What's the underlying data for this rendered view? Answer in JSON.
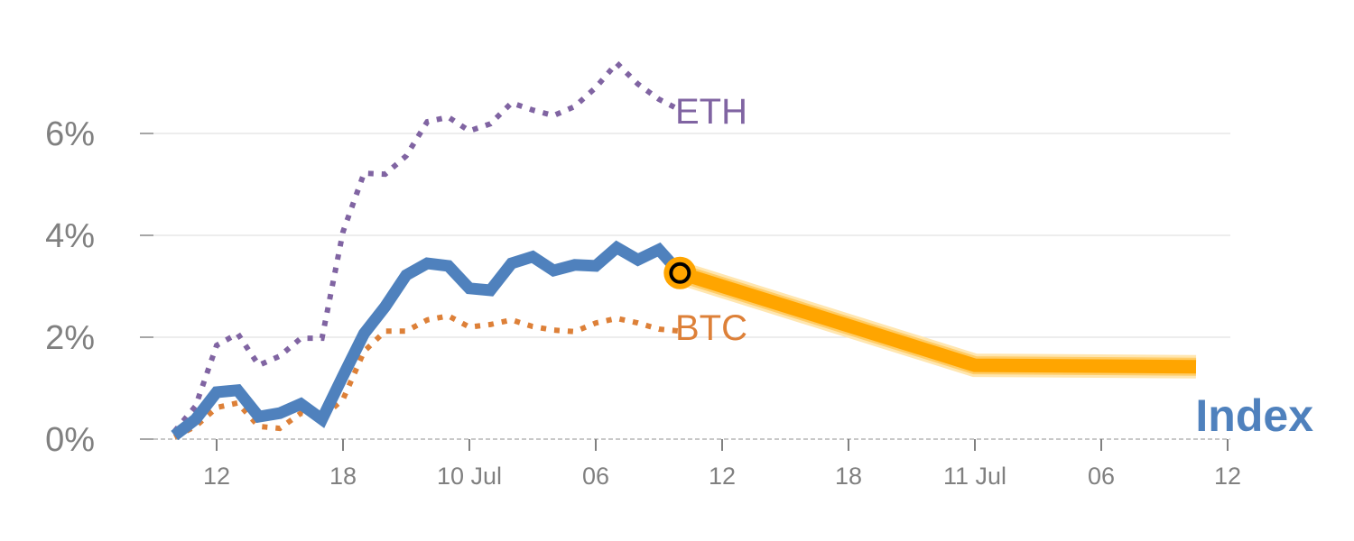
{
  "chart_data": {
    "type": "line",
    "title": "",
    "xlabel": "",
    "ylabel": "",
    "x_unit": "hours since 9 Jul 00:00",
    "xlim": [
      7.7,
      60.8
    ],
    "ylim": [
      0,
      8
    ],
    "y_ticks": [
      {
        "value": 0,
        "label": "0%"
      },
      {
        "value": 2,
        "label": "2%"
      },
      {
        "value": 4,
        "label": "4%"
      },
      {
        "value": 6,
        "label": "6%"
      }
    ],
    "x_ticks": [
      {
        "value": 12,
        "label": "12"
      },
      {
        "value": 18,
        "label": "18"
      },
      {
        "value": 24,
        "label": "10 Jul"
      },
      {
        "value": 30,
        "label": "06"
      },
      {
        "value": 36,
        "label": "12"
      },
      {
        "value": 42,
        "label": "18"
      },
      {
        "value": 48,
        "label": "11 Jul"
      },
      {
        "value": 54,
        "label": "06"
      },
      {
        "value": 60,
        "label": "12"
      }
    ],
    "grid": true,
    "series": [
      {
        "name": "ETH",
        "label": "ETH",
        "color": "#8064a2",
        "style": "dotted",
        "x": [
          10,
          11,
          12,
          13,
          14,
          15,
          16,
          17,
          18,
          19,
          20,
          21,
          22,
          23,
          24,
          25,
          26,
          27,
          28,
          29,
          30,
          31,
          32,
          33,
          34
        ],
        "values": [
          0.15,
          0.65,
          1.84,
          2.07,
          1.45,
          1.63,
          1.98,
          1.98,
          4.07,
          5.22,
          5.2,
          5.56,
          6.23,
          6.32,
          6.05,
          6.19,
          6.6,
          6.46,
          6.35,
          6.53,
          6.9,
          7.38,
          6.97,
          6.67,
          6.46
        ]
      },
      {
        "name": "BTC",
        "label": "BTC",
        "color": "#dd8038",
        "style": "dotted",
        "x": [
          10,
          11,
          12,
          13,
          14,
          15,
          16,
          17,
          18,
          19,
          20,
          21,
          22,
          23,
          24,
          25,
          26,
          27,
          28,
          29,
          30,
          31,
          32,
          33,
          34
        ],
        "values": [
          0.04,
          0.25,
          0.62,
          0.71,
          0.25,
          0.21,
          0.51,
          0.42,
          0.78,
          1.72,
          2.12,
          2.12,
          2.34,
          2.42,
          2.2,
          2.25,
          2.34,
          2.21,
          2.14,
          2.11,
          2.28,
          2.37,
          2.28,
          2.16,
          2.12
        ]
      },
      {
        "name": "Index",
        "label": "Index",
        "color": "#4f81bd",
        "style": "solid",
        "x": [
          10,
          11,
          12,
          13,
          14,
          15,
          16,
          17,
          18,
          19,
          20,
          21,
          22,
          23,
          24,
          25,
          26,
          27,
          28,
          29,
          30,
          31,
          32,
          33,
          34
        ],
        "values": [
          0.07,
          0.39,
          0.92,
          0.96,
          0.44,
          0.51,
          0.69,
          0.39,
          1.24,
          2.07,
          2.6,
          3.22,
          3.45,
          3.4,
          2.96,
          2.92,
          3.45,
          3.58,
          3.31,
          3.42,
          3.4,
          3.76,
          3.52,
          3.72,
          3.26
        ]
      },
      {
        "name": "Index forecast",
        "color": "#ffa500",
        "style": "thick",
        "x": [
          34,
          48,
          58.5
        ],
        "values": [
          3.26,
          1.45,
          1.42
        ]
      }
    ],
    "marker": {
      "x": 34,
      "value": 3.26,
      "color": "#ffa500"
    }
  }
}
